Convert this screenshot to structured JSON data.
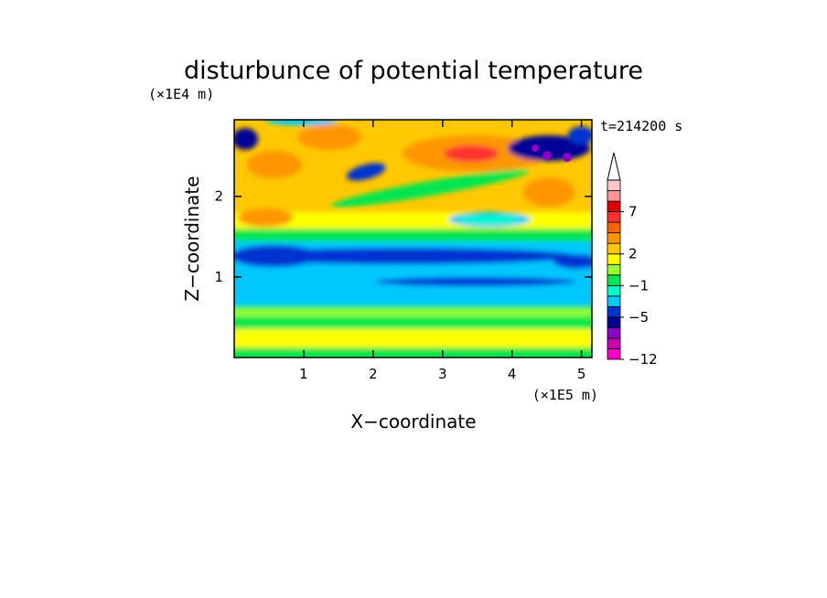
{
  "chart_data": {
    "type": "heatmap",
    "title": "disturbunce of potential temperature",
    "xlabel": "X−coordinate",
    "ylabel": "Z−coordinate",
    "x_unit": "(×1E5 m)",
    "y_unit": "(×1E4 m)",
    "time_label": "t=214200 s",
    "xlim": [
      0,
      5.15
    ],
    "ylim": [
      0,
      2.95
    ],
    "x_ticks": [
      1,
      2,
      3,
      4,
      5
    ],
    "y_ticks": [
      1,
      2
    ],
    "x_tick_labels": [
      "1",
      "2",
      "3",
      "4",
      "5"
    ],
    "y_tick_labels": [
      "1",
      "2"
    ],
    "colorbar": {
      "levels": [
        -12,
        -11,
        -9,
        -7,
        -5,
        -4,
        -3,
        -1,
        0,
        1,
        2,
        3,
        5,
        6,
        7,
        8,
        9,
        10
      ],
      "colors": [
        "#ff00c8",
        "#c800b4",
        "#8c00c8",
        "#000096",
        "#0032d2",
        "#00c8ff",
        "#00ffc8",
        "#00e650",
        "#96ff32",
        "#ffff00",
        "#ffc800",
        "#ff9600",
        "#ff6400",
        "#ff3232",
        "#dc0000",
        "#ff9696",
        "#ffc8c8"
      ],
      "labeled_levels": [
        "7",
        "2",
        "−1",
        "−5",
        "−12"
      ],
      "extend": "max"
    }
  }
}
